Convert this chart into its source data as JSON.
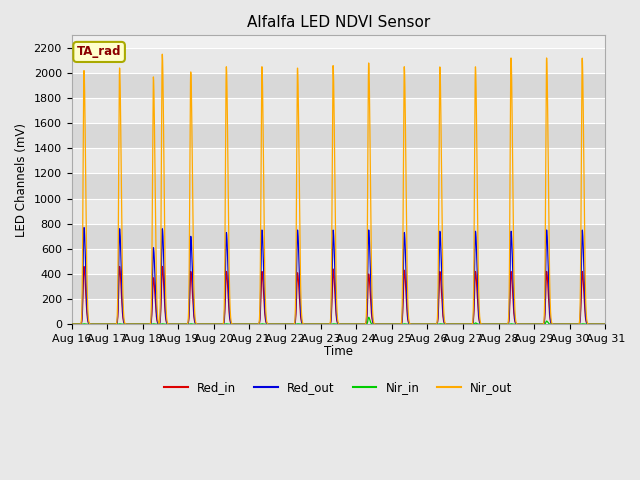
{
  "title": "Alfalfa LED NDVI Sensor",
  "ylabel": "LED Channels (mV)",
  "xlabel": "Time",
  "annotation": "TA_rad",
  "ylim": [
    0,
    2300
  ],
  "bg_color": "#e8e8e8",
  "plot_bg_color": "#f0f0f0",
  "grid_color": "#ffffff",
  "colors": {
    "Red_in": "#dd0000",
    "Red_out": "#0000dd",
    "Nir_in": "#00cc00",
    "Nir_out": "#ffaa00"
  },
  "x_tick_labels": [
    "Aug 16",
    "Aug 17",
    "Aug 18",
    "Aug 19",
    "Aug 20",
    "Aug 21",
    "Aug 22",
    "Aug 23",
    "Aug 24",
    "Aug 25",
    "Aug 26",
    "Aug 27",
    "Aug 28",
    "Aug 29",
    "Aug 30",
    "Aug 31"
  ],
  "yticks": [
    0,
    200,
    400,
    600,
    800,
    1000,
    1200,
    1400,
    1600,
    1800,
    2000,
    2200
  ],
  "band_colors": [
    "#e8e8e8",
    "#d8d8d8"
  ]
}
